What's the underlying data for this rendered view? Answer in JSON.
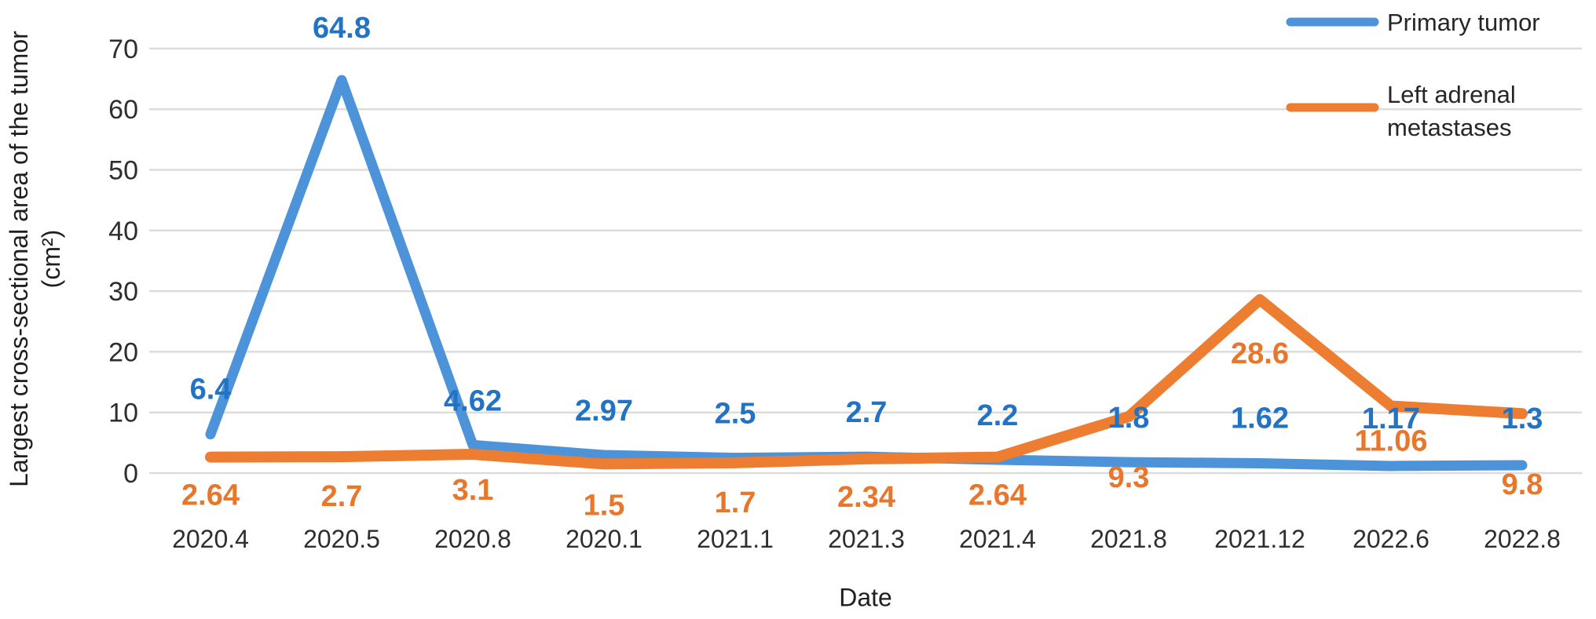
{
  "chart_data": {
    "type": "line",
    "title": "",
    "xlabel": "Date",
    "ylabel": "Largest cross-sectional area of the tumor",
    "ylabel_unit": "(cm²)",
    "ylim": [
      0,
      70
    ],
    "yticks": [
      0,
      10,
      20,
      30,
      40,
      50,
      60,
      70
    ],
    "grid": "horizontal",
    "legend_position": "top-right",
    "categories": [
      "2020.4",
      "2020.5",
      "2020.8",
      "2020.1",
      "2021.1",
      "2021.3",
      "2021.4",
      "2021.8",
      "2021.12",
      "2022.6",
      "2022.8"
    ],
    "series": [
      {
        "name": "Primary tumor",
        "color": "#4C93D9",
        "label_color": "#2273C3",
        "values": [
          6.4,
          64.8,
          4.62,
          2.97,
          2.5,
          2.7,
          2.2,
          1.8,
          1.62,
          1.17,
          1.3
        ]
      },
      {
        "name": "Left adrenal metastases",
        "color": "#ED7D31",
        "label_color": "#E8772B",
        "values": [
          2.64,
          2.7,
          3.1,
          1.5,
          1.7,
          2.34,
          2.64,
          9.3,
          28.6,
          11.06,
          9.8
        ]
      }
    ],
    "colors": {
      "gridline": "#dcdcdc",
      "tick_text": "#2e2e2e",
      "legend_text": "#262626"
    }
  }
}
